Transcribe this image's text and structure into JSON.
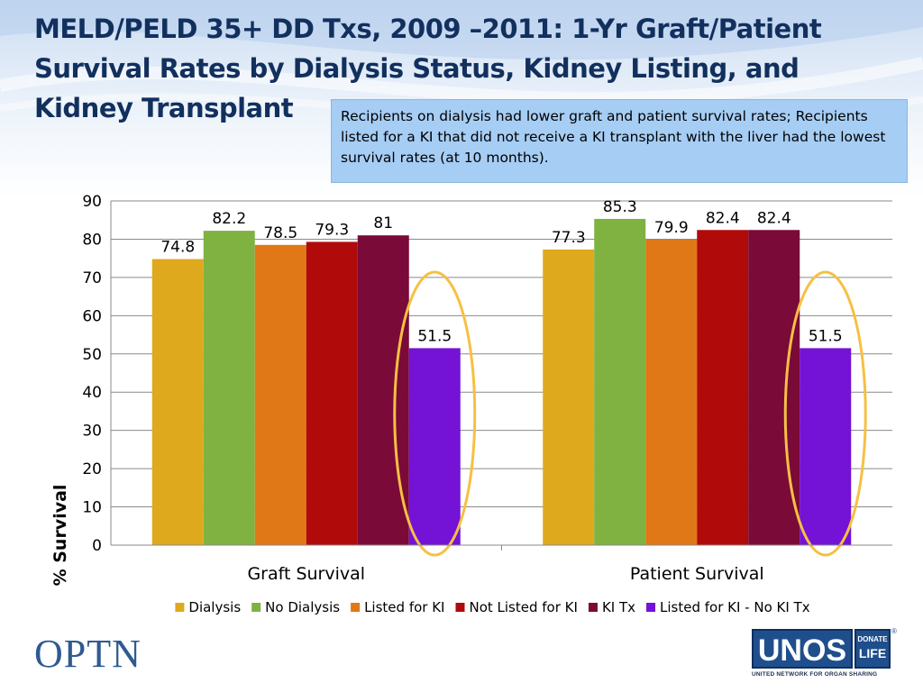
{
  "slide": {
    "title": "MELD/PELD 35+ DD Txs, 2009 –2011: 1-Yr Graft/Patient Survival Rates by Dialysis Status, Kidney Listing, and Kidney Transplant",
    "callout_text": "Recipients on dialysis had lower graft and patient survival rates; Recipients listed for a KI that did not receive a KI transplant with the liver had the lowest survival rates  (at 10 months)."
  },
  "colors": {
    "title": "#12305e",
    "callout_bg": "#a6cdf4",
    "highlight_ellipse": "#f6c043",
    "gridline": "#8a8a8a",
    "logo_blue": "#1f4e8c"
  },
  "chart_data": {
    "type": "bar",
    "categories": [
      "Graft Survival",
      "Patient Survival"
    ],
    "series": [
      {
        "name": "Dialysis",
        "values": [
          74.8,
          77.3
        ],
        "color": "#dfa91e"
      },
      {
        "name": "No Dialysis",
        "values": [
          82.2,
          85.3
        ],
        "color": "#7fb241"
      },
      {
        "name": "Listed for KI",
        "values": [
          78.5,
          79.9
        ],
        "color": "#e07818"
      },
      {
        "name": "Not Listed for KI",
        "values": [
          79.3,
          82.4
        ],
        "color": "#b00a0a"
      },
      {
        "name": "KI Tx",
        "values": [
          81,
          82.4
        ],
        "color": "#7a0a38"
      },
      {
        "name": "Listed for KI - No KI Tx",
        "values": [
          51.5,
          51.5
        ],
        "color": "#7412d6"
      }
    ],
    "data_labels": [
      [
        "74.8",
        "82.2",
        "78.5",
        "79.3",
        "81",
        "51.5"
      ],
      [
        "77.3",
        "85.3",
        "79.9",
        "82.4",
        "82.4",
        "51.5"
      ]
    ],
    "ylabel": "% Survival",
    "xlabel": "",
    "ylim": [
      0,
      90
    ],
    "yticks": [
      0,
      10,
      20,
      30,
      40,
      50,
      60,
      70,
      80,
      90
    ],
    "grid": true,
    "legend_position": "bottom",
    "highlighted_series": "Listed for KI - No KI Tx"
  },
  "logos": {
    "optn": "OPTN",
    "unos": "UNOS",
    "donate_top": "DONATE",
    "donate_bottom": "LIFE",
    "registered": "®",
    "unos_tagline": "UNITED NETWORK FOR ORGAN SHARING"
  }
}
